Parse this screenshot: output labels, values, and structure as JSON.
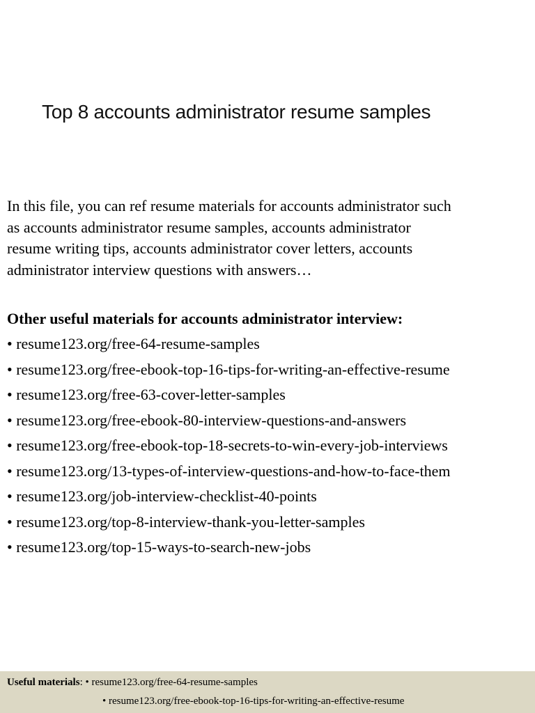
{
  "title": "Top 8 accounts administrator resume samples",
  "intro_lines": [
    "In this file, you can ref resume materials for accounts administrator such",
    "as  accounts administrator resume samples, accounts administrator",
    "resume writing tips, accounts administrator cover letters, accounts",
    "administrator interview questions with answers…"
  ],
  "materials_heading": "Other useful materials for accounts administrator interview:",
  "links": [
    "resume123.org/free-64-resume-samples",
    "resume123.org/free-ebook-top-16-tips-for-writing-an-effective-resume",
    "resume123.org/free-63-cover-letter-samples",
    "resume123.org/free-ebook-80-interview-questions-and-answers",
    "resume123.org/free-ebook-top-18-secrets-to-win-every-job-interviews",
    "resume123.org/13-types-of-interview-questions-and-how-to-face-them",
    "resume123.org/job-interview-checklist-40-points",
    "resume123.org/top-8-interview-thank-you-letter-samples",
    "resume123.org/top-15-ways-to-search-new-jobs"
  ],
  "footer": {
    "label": "Useful materials",
    "links": [
      "resume123.org/free-64-resume-samples",
      "resume123.org/free-ebook-top-16-tips-for-writing-an-effective-resume"
    ],
    "background": "#dcd8c4"
  }
}
